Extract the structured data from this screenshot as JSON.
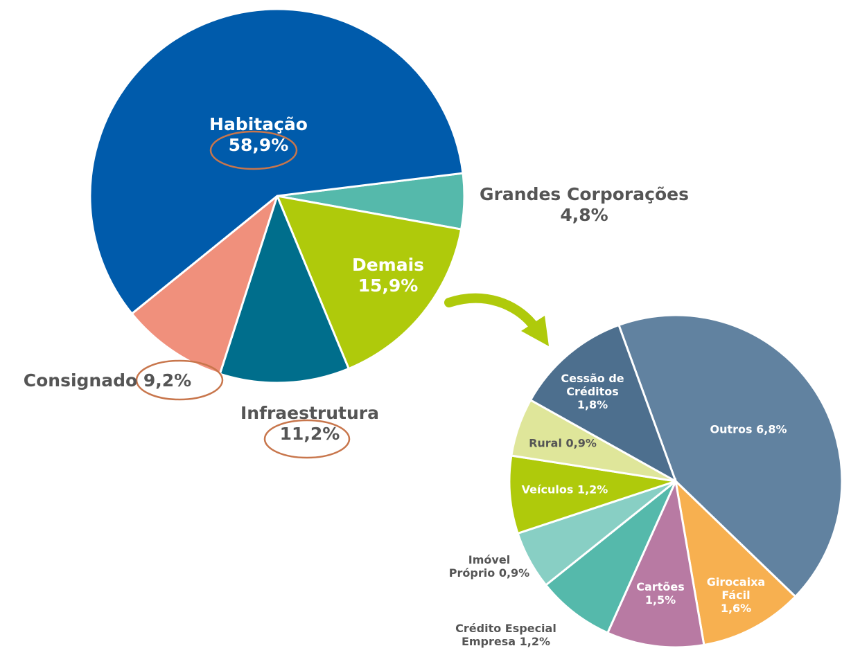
{
  "chart_data": [
    {
      "type": "pie",
      "categories": [
        "Grandes Corporações",
        "Demais",
        "Infraestrutura",
        "Consignado",
        "Habitação"
      ],
      "values": [
        4.8,
        15.9,
        11.2,
        9.2,
        58.9
      ],
      "value_labels": [
        "4,8%",
        "15,9%",
        "11,2%",
        "9,2%",
        "58,9%"
      ],
      "colors": [
        "#55b9ab",
        "#afca0b",
        "#006e8c",
        "#f0907c",
        "#005bab"
      ]
    },
    {
      "type": "pie",
      "categories": [
        "Outros",
        "Girocaixa Fácil",
        "Cartões",
        "Crédito Especial Empresa",
        "Imóvel Próprio",
        "Veículos",
        "Rural",
        "Cessão de Créditos"
      ],
      "values": [
        6.8,
        1.6,
        1.5,
        1.2,
        0.9,
        1.2,
        0.9,
        1.8
      ],
      "value_labels": [
        "6,8%",
        "1,6%",
        "1,5%",
        "1,2%",
        "0,9%",
        "1,2%",
        "0,9%",
        "1,8%"
      ],
      "colors": [
        "#6182a0",
        "#f7b050",
        "#b87aa3",
        "#55b9ab",
        "#88cfc4",
        "#afca0b",
        "#dfe69a",
        "#4d6f8e"
      ]
    }
  ]
}
